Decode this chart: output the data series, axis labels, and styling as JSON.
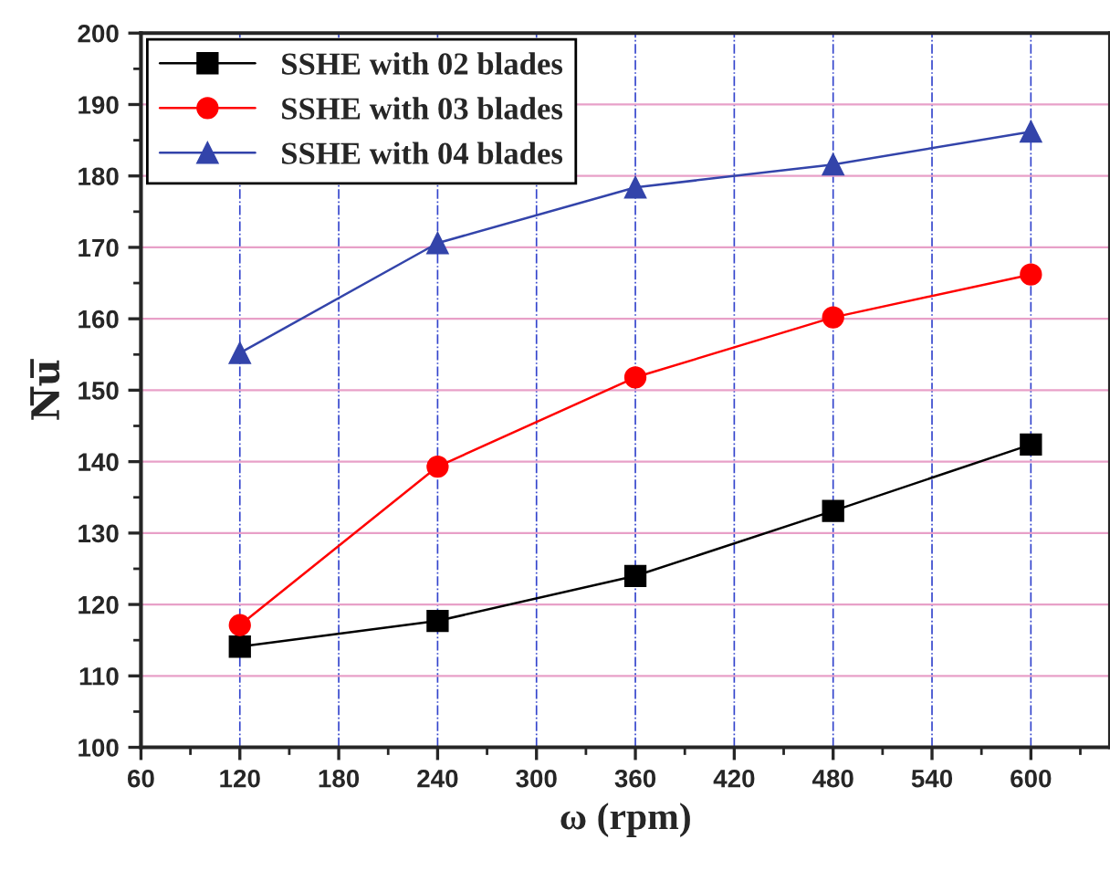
{
  "chart_data": {
    "type": "line",
    "xlabel": "ω (rpm)",
    "ylabel": "N̅u̅",
    "x": [
      120,
      240,
      360,
      480,
      600
    ],
    "series": [
      {
        "name": "SSHE with 02 blades",
        "color": "#000000",
        "marker": "square",
        "values": [
          114.1,
          117.7,
          124.0,
          133.1,
          142.4
        ]
      },
      {
        "name": "SSHE with 03 blades",
        "color": "#ff0000",
        "marker": "circle",
        "values": [
          117.1,
          139.3,
          151.8,
          160.2,
          166.2
        ]
      },
      {
        "name": "SSHE with 04 blades",
        "color": "#3344aa",
        "marker": "triangle",
        "values": [
          155.2,
          170.6,
          178.4,
          181.6,
          186.2
        ]
      }
    ],
    "xlim": [
      60,
      648
    ],
    "xticks": [
      60,
      120,
      180,
      240,
      300,
      360,
      420,
      480,
      540,
      600
    ],
    "ylim": [
      100,
      200
    ],
    "yticks": [
      100,
      110,
      120,
      130,
      140,
      150,
      160,
      170,
      180,
      190,
      200
    ],
    "grid": true,
    "legend": "top left",
    "line_style": "solid"
  }
}
